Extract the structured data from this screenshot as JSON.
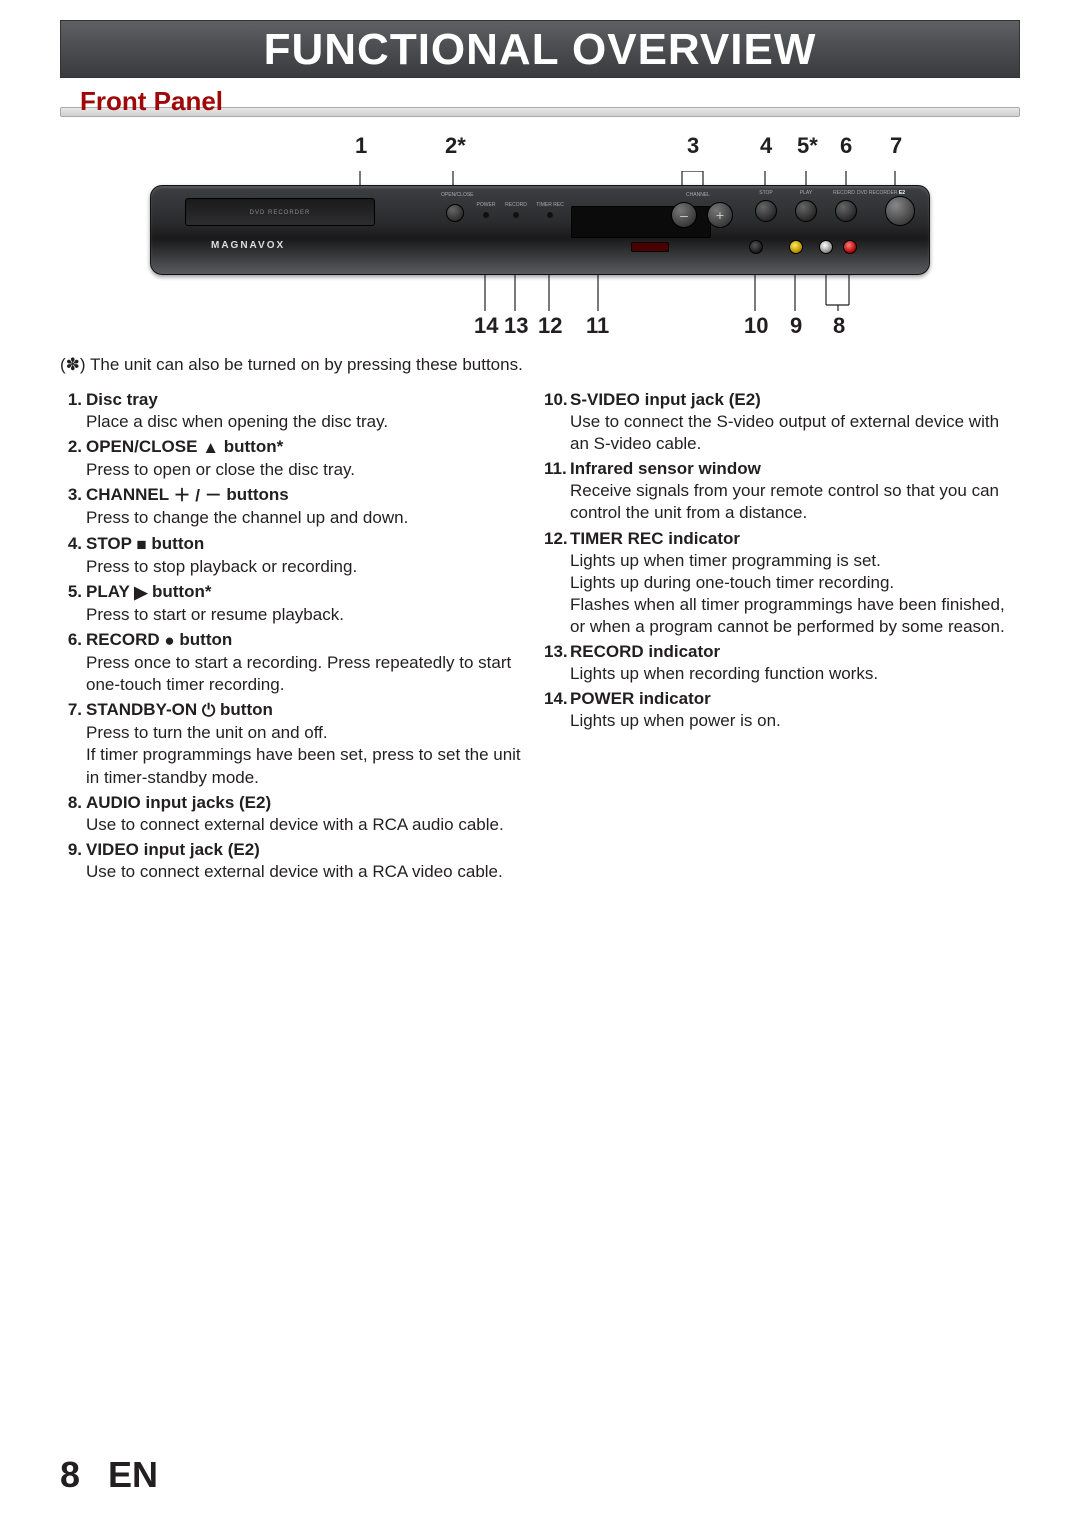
{
  "page": {
    "title": "FUNCTIONAL OVERVIEW",
    "section": "Front Panel",
    "footnote": "(✽) The unit can also be turned on by pressing these buttons.",
    "page_number": "8",
    "lang": "EN"
  },
  "device": {
    "brand": "MAGNAVOX",
    "tray_label": "DVD RECORDER"
  },
  "top_labels": [
    "1",
    "2*",
    "3",
    "4",
    "5*",
    "6",
    "7"
  ],
  "bottom_labels": [
    "14",
    "13",
    "12",
    "11",
    "10",
    "9",
    "8"
  ],
  "items_left": [
    {
      "n": "1.",
      "title": "Disc tray",
      "sym": "",
      "desc": "Place a disc when opening the disc tray."
    },
    {
      "n": "2.",
      "title": "OPEN/CLOSE ",
      "sym": "▲",
      "suffix": " button*",
      "desc": "Press to open or close the disc tray."
    },
    {
      "n": "3.",
      "title": "CHANNEL ",
      "sym": "＋ / －",
      "suffix": " buttons",
      "desc": "Press to change the channel up and down."
    },
    {
      "n": "4.",
      "title": "STOP ",
      "sym": "■",
      "suffix": " button",
      "desc": "Press to stop playback or recording."
    },
    {
      "n": "5.",
      "title": "PLAY ",
      "sym": "▶",
      "suffix": " button*",
      "desc": "Press to start or resume playback."
    },
    {
      "n": "6.",
      "title": "RECORD ",
      "sym": "●",
      "suffix": " button",
      "desc": "Press once to start a recording. Press repeatedly to start one-touch timer recording."
    },
    {
      "n": "7.",
      "title": "STANDBY-ON ",
      "sym": "⏻",
      "suffix": " button",
      "desc": "Press to turn the unit on and off.\nIf timer programmings have been set, press to set the unit in timer-standby mode."
    },
    {
      "n": "8.",
      "title": "AUDIO input jacks (E2)",
      "sym": "",
      "desc": "Use to connect external device with a RCA audio cable."
    },
    {
      "n": "9.",
      "title": "VIDEO input jack (E2)",
      "sym": "",
      "desc": "Use to connect external device with a RCA video cable."
    }
  ],
  "items_right": [
    {
      "n": "10.",
      "title": "S-VIDEO input jack (E2)",
      "desc": "Use to connect the S-video output of external device with an S-video cable."
    },
    {
      "n": "11.",
      "title": "Infrared sensor window",
      "desc": "Receive signals from your remote control so that you can control the unit from a distance."
    },
    {
      "n": "12.",
      "title": "TIMER REC indicator",
      "desc": "Lights up when timer programming is set.\nLights up during one-touch timer recording.\nFlashes when all timer programmings have been finished, or when a program cannot be performed by some reason."
    },
    {
      "n": "13.",
      "title": "RECORD indicator",
      "desc": "Lights up when recording function works."
    },
    {
      "n": "14.",
      "title": "POWER indicator",
      "desc": "Lights up when power is on."
    }
  ],
  "style": {
    "title_bg": "#4b4c4f",
    "heading_color": "#a00808",
    "text_color": "#231f20",
    "body_fontsize": 17,
    "title_fontsize": 44
  }
}
